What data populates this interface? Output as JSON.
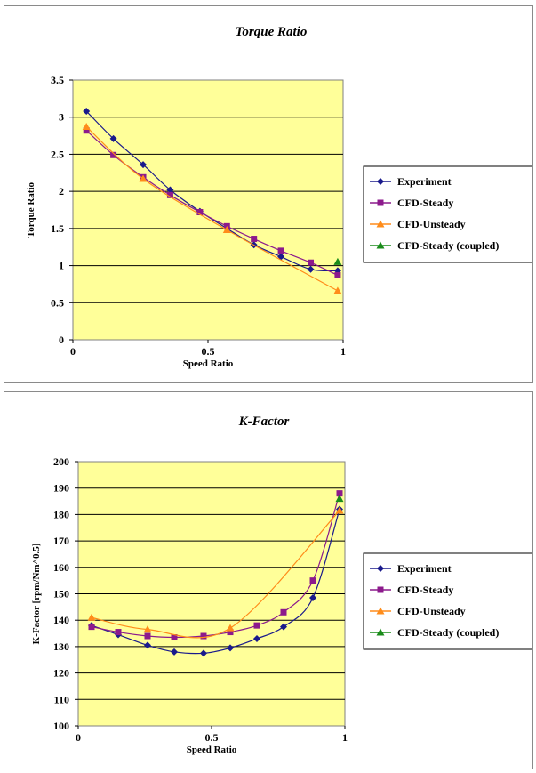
{
  "chart_data": [
    {
      "type": "line",
      "title": "Torque Ratio",
      "xlabel": "Speed Ratio",
      "ylabel": "Torque Ratio",
      "xlim": [
        0,
        1
      ],
      "ylim": [
        0,
        3.5
      ],
      "x_ticks": [
        "0",
        "0.5",
        "1"
      ],
      "y_ticks": [
        "0",
        "0.5",
        "1",
        "1.5",
        "2",
        "2.5",
        "3",
        "3.5"
      ],
      "grid": "horizontal",
      "legend_position": "right",
      "series": [
        {
          "name": "Experiment",
          "color": "#1a1a8c",
          "marker": "diamond",
          "x": [
            0.05,
            0.15,
            0.26,
            0.36,
            0.47,
            0.57,
            0.67,
            0.77,
            0.88,
            0.98
          ],
          "y": [
            3.08,
            2.71,
            2.36,
            2.02,
            1.73,
            1.5,
            1.28,
            1.12,
            0.95,
            0.93
          ]
        },
        {
          "name": "CFD-Steady",
          "color": "#8c1a8c",
          "marker": "square",
          "x": [
            0.05,
            0.15,
            0.26,
            0.36,
            0.47,
            0.57,
            0.67,
            0.77,
            0.88,
            0.98
          ],
          "y": [
            2.82,
            2.49,
            2.19,
            1.95,
            1.72,
            1.53,
            1.36,
            1.2,
            1.04,
            0.87
          ]
        },
        {
          "name": "CFD-Unsteady",
          "color": "#ff8c1a",
          "marker": "triangle",
          "x": [
            0.05,
            0.26,
            0.57,
            0.98
          ],
          "y": [
            2.87,
            2.17,
            1.48,
            0.66
          ]
        },
        {
          "name": "CFD-Steady (coupled)",
          "color": "#1a8c1a",
          "marker": "triangle",
          "x": [
            0.98
          ],
          "y": [
            1.05
          ]
        }
      ]
    },
    {
      "type": "line",
      "title": "K-Factor",
      "xlabel": "Speed Ratio",
      "ylabel": "K-Factor [rpm/Nm^0.5]",
      "xlim": [
        0,
        1
      ],
      "ylim": [
        100,
        200
      ],
      "x_ticks": [
        "0",
        "0.5",
        "1"
      ],
      "y_ticks": [
        "100",
        "110",
        "120",
        "130",
        "140",
        "150",
        "160",
        "170",
        "180",
        "190",
        "200"
      ],
      "grid": "horizontal",
      "legend_position": "right",
      "series": [
        {
          "name": "Experiment",
          "color": "#1a1a8c",
          "marker": "diamond",
          "x": [
            0.05,
            0.15,
            0.26,
            0.36,
            0.47,
            0.57,
            0.67,
            0.77,
            0.88,
            0.98
          ],
          "y": [
            138,
            134.5,
            130.5,
            128,
            127.5,
            129.5,
            133,
            137.5,
            148.5,
            182
          ]
        },
        {
          "name": "CFD-Steady",
          "color": "#8c1a8c",
          "marker": "square",
          "x": [
            0.05,
            0.15,
            0.26,
            0.36,
            0.47,
            0.57,
            0.67,
            0.77,
            0.88,
            0.98
          ],
          "y": [
            137.5,
            135.5,
            134,
            133.5,
            134,
            135.5,
            138,
            143,
            155,
            188
          ]
        },
        {
          "name": "CFD-Unsteady",
          "color": "#ff8c1a",
          "marker": "triangle",
          "x": [
            0.05,
            0.26,
            0.57,
            0.98
          ],
          "y": [
            141,
            136.5,
            137,
            181.5
          ]
        },
        {
          "name": "CFD-Steady (coupled)",
          "color": "#1a8c1a",
          "marker": "triangle",
          "x": [
            0.98
          ],
          "y": [
            186
          ]
        }
      ]
    }
  ],
  "style": {
    "plot_background": "#ffff99",
    "grid_color": "#000000"
  }
}
